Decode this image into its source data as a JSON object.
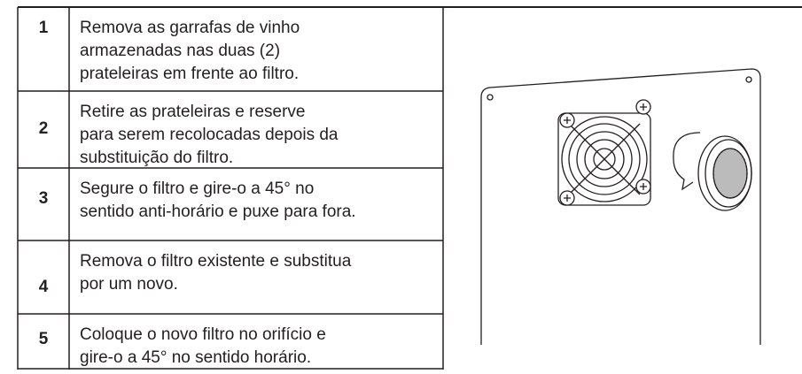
{
  "table": {
    "rows": [
      {
        "number": "1",
        "lines": [
          "Remova as garrafas de vinho",
          "armazenadas nas duas (2)",
          "prateleiras em frente ao filtro."
        ]
      },
      {
        "number": "2",
        "lines": [
          "Retire as prateleiras e reserve",
          "para serem recolocadas depois da",
          "substituição do filtro."
        ]
      },
      {
        "number": "3",
        "lines": [
          "Segure o filtro e gire-o a 45° no",
          "sentido anti-horário e puxe para fora."
        ]
      },
      {
        "number": "4",
        "lines": [
          "Remova o filtro existente e substitua",
          "por um novo."
        ]
      },
      {
        "number": "5",
        "lines": [
          "Coloque o novo filtro no orifício e",
          "gire-o a 45° no sentido horário."
        ]
      }
    ]
  }
}
